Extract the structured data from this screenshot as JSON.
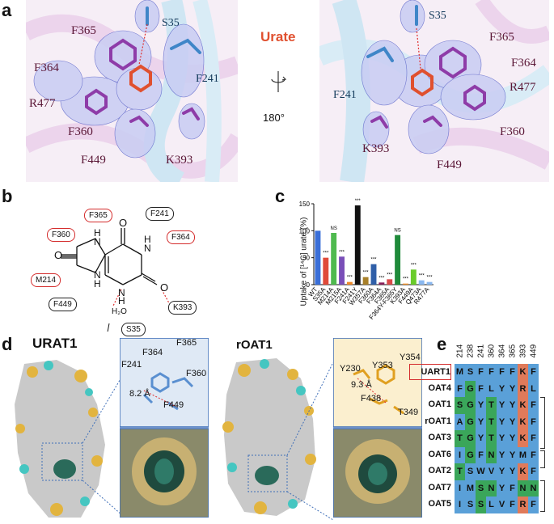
{
  "panels": {
    "a": "a",
    "b": "b",
    "c": "c",
    "d": "d",
    "e": "e"
  },
  "panel_a": {
    "ligand_label": "Urate",
    "rotation": "180°",
    "left_residues": [
      "F365",
      "S35",
      "F364",
      "F241",
      "R477",
      "F360",
      "F449",
      "K393"
    ],
    "right_residues": [
      "S35",
      "F365",
      "F364",
      "R477",
      "F241",
      "F360",
      "K393",
      "F449"
    ]
  },
  "panel_b": {
    "red_residues": [
      "F365",
      "F360",
      "F364",
      "M214"
    ],
    "black_residues": [
      "F241",
      "F449",
      "K393",
      "S35"
    ],
    "water": "H₂O",
    "atoms": {
      "H": "H",
      "N": "N",
      "O": "O"
    }
  },
  "chart_data": {
    "type": "bar",
    "ylabel": "Uptake of [¹⁴C] urate (%)",
    "ylim": [
      0,
      150
    ],
    "yticks": [
      0,
      50,
      100,
      150
    ],
    "categories": [
      "WT",
      "S35A",
      "M214A",
      "M215A",
      "F241A",
      "F241Y",
      "W357A",
      "F360A",
      "F364A",
      "F365A",
      "F364Y-F365Y",
      "K393A",
      "F449A",
      "Q473A",
      "R477A"
    ],
    "values": [
      100,
      50,
      96,
      52,
      5,
      147,
      14,
      38,
      4,
      10,
      92,
      2,
      28,
      8,
      5
    ],
    "significance": [
      "",
      "***",
      "NS",
      "***",
      "***",
      "***",
      "***",
      "***",
      "***",
      "***",
      "NS",
      "***",
      "***",
      "***",
      "***"
    ],
    "colors": [
      "#3a6fd8",
      "#e04a3a",
      "#4fba4f",
      "#7a4fb8",
      "#f08a2a",
      "#111111",
      "#a8802a",
      "#2f5fa8",
      "#8a1f5a",
      "#d94a4a",
      "#1f8a3a",
      "#f0902a",
      "#6acc2a",
      "#8ab8f0",
      "#8ab8f0"
    ]
  },
  "panel_d": {
    "left_title": "URAT1",
    "right_title": "rOAT1",
    "left_residues": [
      "F365",
      "F364",
      "F241",
      "F360",
      "F449"
    ],
    "left_distance": "8.2 Å",
    "right_residues": [
      "Y354",
      "Y230",
      "Y353",
      "F438",
      "T349"
    ],
    "right_distance": "9.3 Å"
  },
  "panel_e": {
    "positions": [
      "214",
      "238",
      "241",
      "360",
      "364",
      "365",
      "393",
      "449"
    ],
    "rows": [
      {
        "name": "UART1",
        "seq": [
          "M",
          "S",
          "F",
          "F",
          "F",
          "F",
          "K",
          "F"
        ]
      },
      {
        "name": "OAT4",
        "seq": [
          "F",
          "G",
          "F",
          "L",
          "Y",
          "Y",
          "R",
          "L"
        ]
      },
      {
        "name": "OAT1",
        "seq": [
          "S",
          "G",
          "Y",
          "T",
          "Y",
          "Y",
          "K",
          "F"
        ]
      },
      {
        "name": "rOAT1",
        "seq": [
          "A",
          "G",
          "Y",
          "T",
          "Y",
          "Y",
          "K",
          "F"
        ]
      },
      {
        "name": "OAT3",
        "seq": [
          "T",
          "G",
          "Y",
          "T",
          "Y",
          "Y",
          "K",
          "F"
        ]
      },
      {
        "name": "OAT6",
        "seq": [
          "I",
          "G",
          "F",
          "N",
          "Y",
          "Y",
          "M",
          "F"
        ]
      },
      {
        "name": "OAT2",
        "seq": [
          "T",
          "S",
          "W",
          "V",
          "Y",
          "Y",
          "K",
          "F"
        ]
      },
      {
        "name": "OAT7",
        "seq": [
          "I",
          "M",
          "S",
          "N",
          "Y",
          "F",
          "N",
          "N"
        ]
      },
      {
        "name": "OAT5",
        "seq": [
          "I",
          "S",
          "S",
          "L",
          "V",
          "F",
          "R",
          "F"
        ]
      }
    ]
  }
}
